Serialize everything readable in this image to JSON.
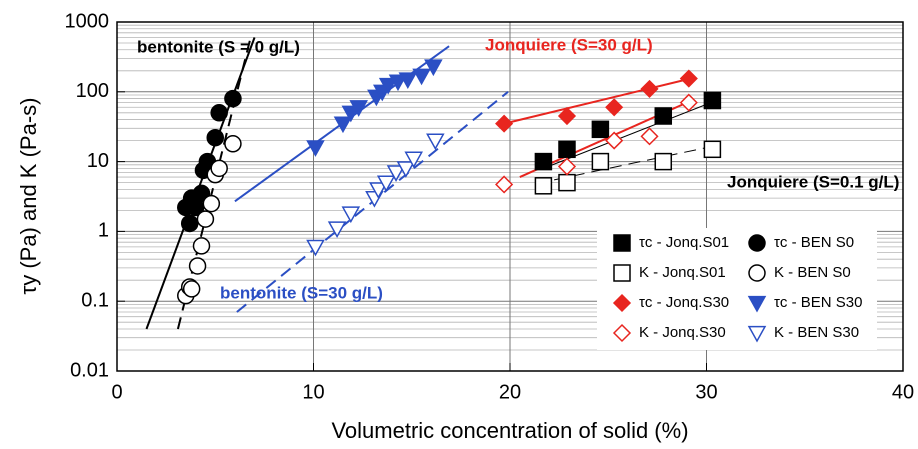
{
  "chart_data": {
    "type": "scatter",
    "x_label": "Volumetric concentration of solid (%)",
    "y_label": "τy (Pa) and K (Pa-s)",
    "xlim": [
      0,
      40
    ],
    "ylim": [
      0.01,
      1000
    ],
    "log_y": true,
    "grid": true,
    "xticks": [
      0,
      10,
      20,
      30,
      40
    ],
    "yticks": [
      0.01,
      0.1,
      1,
      10,
      100,
      1000
    ],
    "y_minor_ticks": [
      0.02,
      0.03,
      0.04,
      0.05,
      0.06,
      0.07,
      0.08,
      0.09,
      0.2,
      0.3,
      0.4,
      0.5,
      0.6,
      0.7,
      0.8,
      0.9,
      2,
      3,
      4,
      5,
      6,
      7,
      8,
      9,
      20,
      30,
      40,
      50,
      60,
      70,
      80,
      90,
      200,
      300,
      400,
      500,
      600,
      700,
      800,
      900
    ],
    "legend": "lower right",
    "series": [
      {
        "name": "τc - Jonq.S01",
        "color": "#000000",
        "marker": "square",
        "filled": true,
        "x": [
          21.7,
          22.9,
          24.6,
          27.8,
          30.3
        ],
        "values": [
          10,
          15,
          29,
          45,
          75
        ]
      },
      {
        "name": "K - Jonq.S01",
        "color": "#000000",
        "marker": "square",
        "filled": false,
        "x": [
          21.7,
          22.9,
          24.6,
          27.8,
          30.3
        ],
        "values": [
          4.5,
          5,
          10,
          10,
          15
        ]
      },
      {
        "name": "τc - Jonq.S30",
        "color": "#e8251f",
        "marker": "diamond",
        "filled": true,
        "x": [
          19.7,
          22.9,
          25.3,
          27.1,
          29.1
        ],
        "values": [
          35,
          45,
          60,
          110,
          155
        ]
      },
      {
        "name": "K - Jonq.S30",
        "color": "#e8251f",
        "marker": "diamond",
        "filled": false,
        "x": [
          19.7,
          22.9,
          25.3,
          27.1,
          29.1
        ],
        "values": [
          4.7,
          8.5,
          20,
          23,
          70
        ]
      },
      {
        "name": "τc - BEN S0",
        "color": "#000000",
        "marker": "circle",
        "filled": true,
        "x": [
          3.5,
          3.7,
          3.8,
          4.0,
          4.3,
          4.4,
          4.6,
          5.0,
          5.2,
          5.9
        ],
        "values": [
          2.2,
          1.3,
          3,
          2.2,
          3.5,
          7.5,
          10,
          22,
          50,
          80
        ]
      },
      {
        "name": "K - BEN S0",
        "color": "#000000",
        "marker": "circle",
        "filled": false,
        "x": [
          3.5,
          3.7,
          3.8,
          4.1,
          4.3,
          4.5,
          4.8,
          5.0,
          5.2,
          5.9
        ],
        "values": [
          0.12,
          0.16,
          0.15,
          0.32,
          0.62,
          1.5,
          2.5,
          6.5,
          8,
          18
        ]
      },
      {
        "name": "τc - BEN S30",
        "color": "#2b4fc4",
        "marker": "triangle-down",
        "filled": true,
        "x": [
          10.1,
          11.5,
          11.9,
          12.3,
          13.2,
          13.5,
          13.8,
          14.3,
          14.8,
          15.5,
          16.1
        ],
        "values": [
          16,
          35,
          50,
          60,
          85,
          100,
          125,
          140,
          150,
          170,
          230
        ]
      },
      {
        "name": "K - BEN S30",
        "color": "#2b4fc4",
        "marker": "triangle-down",
        "filled": false,
        "x": [
          10.1,
          11.2,
          11.9,
          13.1,
          13.3,
          13.7,
          14.2,
          14.7,
          15.1,
          16.2
        ],
        "values": [
          0.6,
          1.1,
          1.8,
          3,
          4,
          5,
          7,
          8,
          11,
          20
        ]
      }
    ],
    "fit_lines": [
      {
        "color": "#000000",
        "dashed": false,
        "x": [
          1.5,
          7.0
        ],
        "y": [
          0.04,
          600
        ]
      },
      {
        "color": "#000000",
        "dashed": true,
        "x": [
          3.1,
          6.8
        ],
        "y": [
          0.04,
          600
        ]
      },
      {
        "color": "#2b4fc4",
        "dashed": false,
        "x": [
          6.0,
          16.9
        ],
        "y": [
          2.7,
          450
        ]
      },
      {
        "color": "#2b4fc4",
        "dashed": true,
        "x": [
          6.1,
          19.9
        ],
        "y": [
          0.07,
          100
        ]
      },
      {
        "color": "#e8251f",
        "dashed": false,
        "x": [
          19.7,
          29.2
        ],
        "y": [
          35,
          155
        ]
      },
      {
        "color": "#e8251f",
        "dashed": false,
        "x": [
          20.5,
          29.0
        ],
        "y": [
          6,
          70
        ]
      },
      {
        "color": "#000000",
        "dashed": false,
        "x": [
          21.7,
          30.5
        ],
        "y": [
          8,
          75
        ]
      },
      {
        "color": "#000000",
        "dashed": true,
        "x": [
          21.3,
          30.5
        ],
        "y": [
          4.8,
          17
        ]
      }
    ],
    "annotations": [
      {
        "text": "bentonite (S = 0 g/L)",
        "color": "#000000"
      },
      {
        "text": "Jonquiere (S=30 g/L)",
        "color": "#e8251f"
      },
      {
        "text": "Jonquiere (S=0.1 g/L)",
        "color": "#000000"
      },
      {
        "text": "bentonite (S=30 g/L)",
        "color": "#2b4fc4"
      }
    ]
  }
}
